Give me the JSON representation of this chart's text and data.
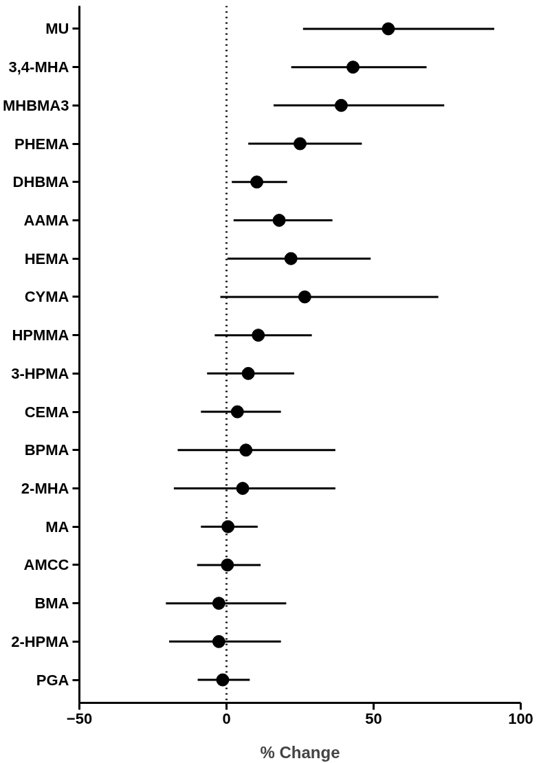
{
  "chart_data": {
    "type": "scatter",
    "orientation": "horizontal",
    "xlabel": "% Change",
    "categories": [
      "MU",
      "3,4-MHA",
      "MHBMA3",
      "PHEMA",
      "DHBMA",
      "AAMA",
      "HEMA",
      "CYMA",
      "HPMMA",
      "3-HPMA",
      "CEMA",
      "BPMA",
      "2-MHA",
      "MA",
      "AMCC",
      "BMA",
      "2-HPMA",
      "PGA"
    ],
    "values": [
      55,
      43,
      39,
      25,
      10.3,
      17.9,
      21.9,
      26.6,
      10.8,
      7.4,
      3.7,
      6.6,
      5.5,
      0.5,
      0.3,
      -2.6,
      -2.6,
      -1.3
    ],
    "errors": [
      [
        26,
        91
      ],
      [
        22,
        68
      ],
      [
        16,
        74
      ],
      [
        7.4,
        46
      ],
      [
        1.8,
        20.6
      ],
      [
        2.4,
        36
      ],
      [
        0.3,
        49
      ],
      [
        -2.1,
        72
      ],
      [
        -4,
        29
      ],
      [
        -6.6,
        23
      ],
      [
        -8.7,
        18.5
      ],
      [
        -16.6,
        37
      ],
      [
        -17.9,
        37
      ],
      [
        -8.7,
        10.6
      ],
      [
        -10,
        11.6
      ],
      [
        -20.6,
        20.3
      ],
      [
        -19.5,
        18.5
      ],
      [
        -9.8,
        7.9
      ]
    ],
    "color": "#000000",
    "marker": "circle",
    "xlim": [
      -50,
      100
    ],
    "xticks": [
      -50,
      0,
      50,
      100
    ],
    "ref_lines": [
      {
        "axis": "x",
        "value": 0,
        "line_style": "dotted",
        "color": "#000000"
      }
    ]
  }
}
